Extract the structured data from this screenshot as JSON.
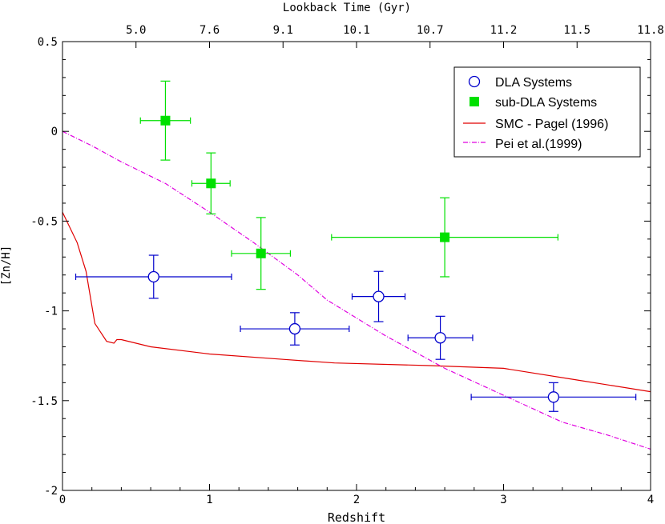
{
  "chart_data": {
    "type": "scatter",
    "xlabel": "Redshift",
    "ylabel": "[Zn/H]",
    "top_axis_label": "Lookback Time (Gyr)",
    "xlim": [
      0,
      4
    ],
    "ylim": [
      -2,
      0.5
    ],
    "x_ticks": [
      "0",
      "1",
      "2",
      "3",
      "4"
    ],
    "y_ticks": [
      "0.5",
      "0",
      "-0.5",
      "-1",
      "-1.5",
      "-2"
    ],
    "top_ticks": [
      {
        "z": 0.5,
        "label": "5.0"
      },
      {
        "z": 1.0,
        "label": "7.6"
      },
      {
        "z": 1.5,
        "label": "9.1"
      },
      {
        "z": 2.0,
        "label": "10.1"
      },
      {
        "z": 2.5,
        "label": "10.7"
      },
      {
        "z": 3.0,
        "label": "11.2"
      },
      {
        "z": 3.5,
        "label": "11.5"
      },
      {
        "z": 4.0,
        "label": "11.8"
      }
    ],
    "grid": false,
    "legend_position": "top-right",
    "series": [
      {
        "name": "DLA Systems",
        "kind": "points",
        "marker": "open-circle",
        "color": "#0000cc",
        "points": [
          {
            "x": 0.62,
            "y": -0.81,
            "xerr": [
              0.53,
              0.53
            ],
            "yerr": [
              0.12,
              0.12
            ]
          },
          {
            "x": 1.58,
            "y": -1.1,
            "xerr": [
              0.37,
              0.37
            ],
            "yerr": [
              0.09,
              0.09
            ]
          },
          {
            "x": 2.15,
            "y": -0.92,
            "xerr": [
              0.18,
              0.18
            ],
            "yerr": [
              0.14,
              0.14
            ]
          },
          {
            "x": 2.57,
            "y": -1.15,
            "xerr": [
              0.22,
              0.22
            ],
            "yerr": [
              0.12,
              0.12
            ]
          },
          {
            "x": 3.34,
            "y": -1.48,
            "xerr": [
              0.56,
              0.56
            ],
            "yerr": [
              0.08,
              0.08
            ]
          }
        ]
      },
      {
        "name": "sub-DLA Systems",
        "kind": "points",
        "marker": "filled-square",
        "color": "#00e000",
        "points": [
          {
            "x": 0.7,
            "y": 0.06,
            "xerr": [
              0.17,
              0.17
            ],
            "yerr": [
              0.22,
              0.22
            ]
          },
          {
            "x": 1.01,
            "y": -0.29,
            "xerr": [
              0.13,
              0.13
            ],
            "yerr": [
              0.17,
              0.17
            ]
          },
          {
            "x": 1.35,
            "y": -0.68,
            "xerr": [
              0.2,
              0.2
            ],
            "yerr": [
              0.2,
              0.2
            ]
          },
          {
            "x": 2.6,
            "y": -0.59,
            "xerr": [
              0.77,
              0.77
            ],
            "yerr": [
              0.22,
              0.22
            ]
          }
        ]
      },
      {
        "name": "SMC - Pagel (1996)",
        "kind": "line",
        "style": "solid",
        "color": "#e00000",
        "x": [
          0,
          0.1,
          0.16,
          0.22,
          0.3,
          0.35,
          0.37,
          0.4,
          0.6,
          1.0,
          1.5,
          1.85,
          2.5,
          3.0,
          3.5,
          4.0
        ],
        "y": [
          -0.45,
          -0.62,
          -0.78,
          -1.07,
          -1.17,
          -1.18,
          -1.16,
          -1.16,
          -1.2,
          -1.24,
          -1.27,
          -1.29,
          -1.305,
          -1.32,
          -1.385,
          -1.45
        ]
      },
      {
        "name": "Pei et al.(1999)",
        "kind": "line",
        "style": "dash-dot",
        "color": "#e000e0",
        "x": [
          0,
          0.2,
          0.4,
          0.7,
          1.0,
          1.3,
          1.6,
          1.8,
          2.2,
          2.6,
          3.0,
          3.4,
          3.7,
          4.0
        ],
        "y": [
          0.0,
          -0.08,
          -0.17,
          -0.29,
          -0.45,
          -0.62,
          -0.8,
          -0.94,
          -1.14,
          -1.32,
          -1.47,
          -1.62,
          -1.69,
          -1.77
        ]
      }
    ]
  }
}
